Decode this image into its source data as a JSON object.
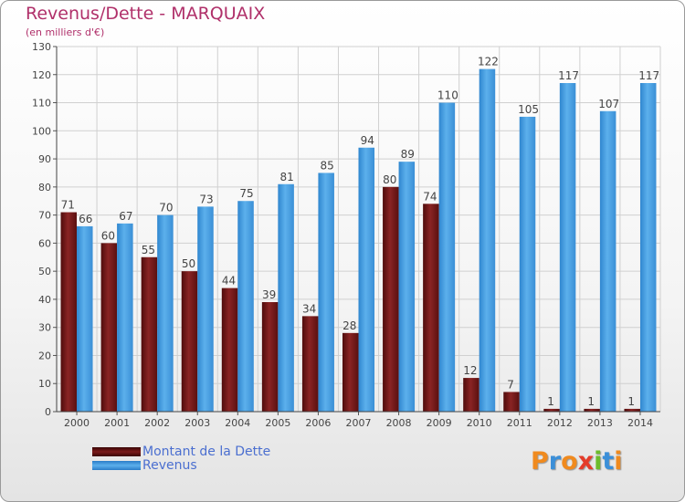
{
  "chart_data": {
    "type": "bar",
    "title": "Revenus/Dette - MARQUAIX",
    "subtitle": "(en milliers d'€)",
    "categories": [
      "2000",
      "2001",
      "2002",
      "2003",
      "2004",
      "2005",
      "2006",
      "2007",
      "2008",
      "2009",
      "2010",
      "2011",
      "2012",
      "2013",
      "2014"
    ],
    "series": [
      {
        "name": "Montant de la Dette",
        "color": "#7a1b1b",
        "values": [
          71,
          60,
          55,
          50,
          44,
          39,
          34,
          28,
          80,
          74,
          12,
          7,
          1,
          1,
          1
        ]
      },
      {
        "name": "Revenus",
        "color": "#4aa0e0",
        "values": [
          66,
          67,
          70,
          73,
          75,
          81,
          85,
          94,
          89,
          110,
          122,
          105,
          117,
          107,
          117
        ]
      }
    ],
    "ylim": [
      0,
      130
    ],
    "yticks": [
      0,
      10,
      20,
      30,
      40,
      50,
      60,
      70,
      80,
      90,
      100,
      110,
      120,
      130
    ],
    "grid": true,
    "legend_position": "bottom-left"
  },
  "logo": {
    "letters": [
      "P",
      "r",
      "o",
      "x",
      "i",
      "t",
      "i"
    ],
    "colors": [
      "#f08a1e",
      "#3b8fd8",
      "#f08a1e",
      "#e43c2a",
      "#6cbc2c",
      "#3b8fd8",
      "#f08a1e"
    ]
  }
}
